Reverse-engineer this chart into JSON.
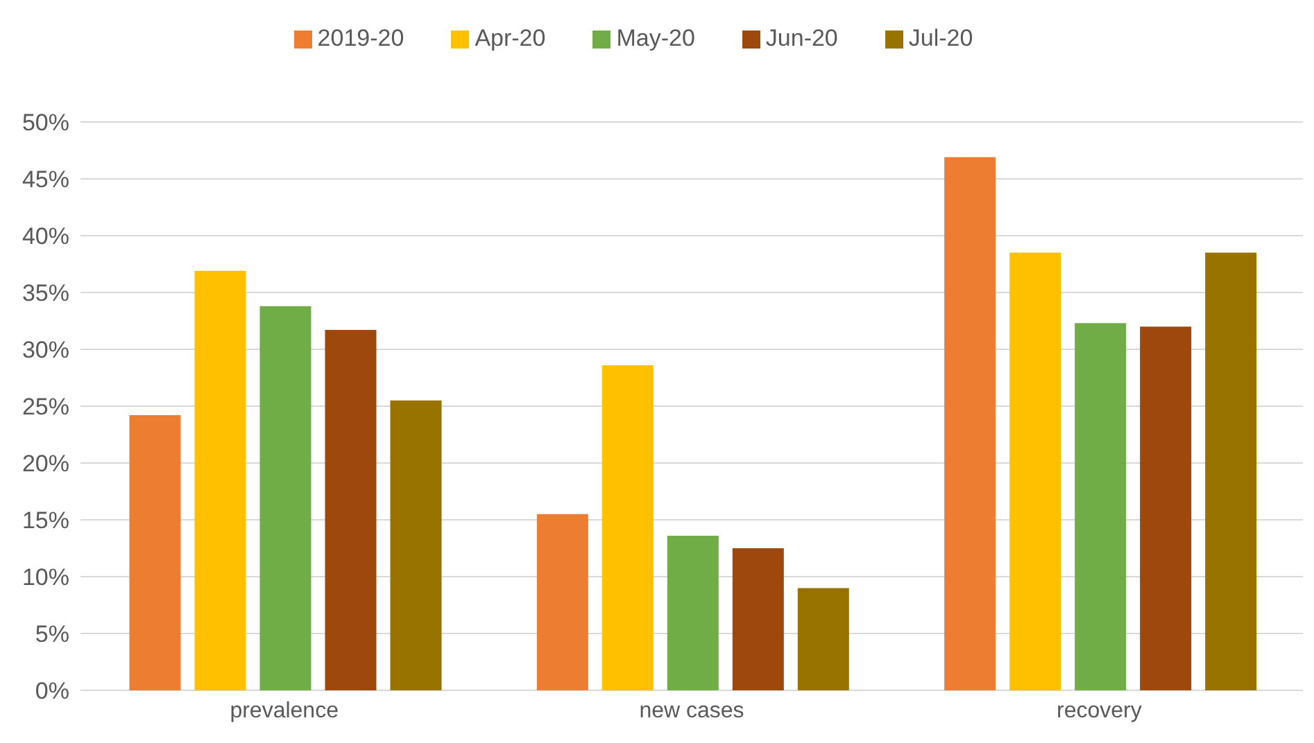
{
  "chart_data": {
    "type": "bar",
    "categories": [
      "prevalence",
      "new cases",
      "recovery"
    ],
    "series": [
      {
        "name": "2019-20",
        "color": "#ed7d31",
        "values": [
          24.2,
          15.5,
          46.9
        ]
      },
      {
        "name": "Apr-20",
        "color": "#ffc000",
        "values": [
          36.9,
          28.6,
          38.5
        ]
      },
      {
        "name": "May-20",
        "color": "#70ad47",
        "values": [
          33.8,
          13.6,
          32.3
        ]
      },
      {
        "name": "Jun-20",
        "color": "#9e480e",
        "values": [
          31.7,
          12.5,
          32.0
        ]
      },
      {
        "name": "Jul-20",
        "color": "#997300",
        "values": [
          25.5,
          9.0,
          38.5
        ]
      }
    ],
    "ylim": [
      0,
      50
    ],
    "yticks": [
      {
        "value": 0,
        "label": "0%"
      },
      {
        "value": 5,
        "label": "5%"
      },
      {
        "value": 10,
        "label": "10%"
      },
      {
        "value": 15,
        "label": "15%"
      },
      {
        "value": 20,
        "label": "20%"
      },
      {
        "value": 25,
        "label": "25%"
      },
      {
        "value": 30,
        "label": "30%"
      },
      {
        "value": 35,
        "label": "35%"
      },
      {
        "value": 40,
        "label": "40%"
      },
      {
        "value": 45,
        "label": "45%"
      },
      {
        "value": 50,
        "label": "50%"
      }
    ],
    "grid": "y",
    "legend": "top"
  }
}
